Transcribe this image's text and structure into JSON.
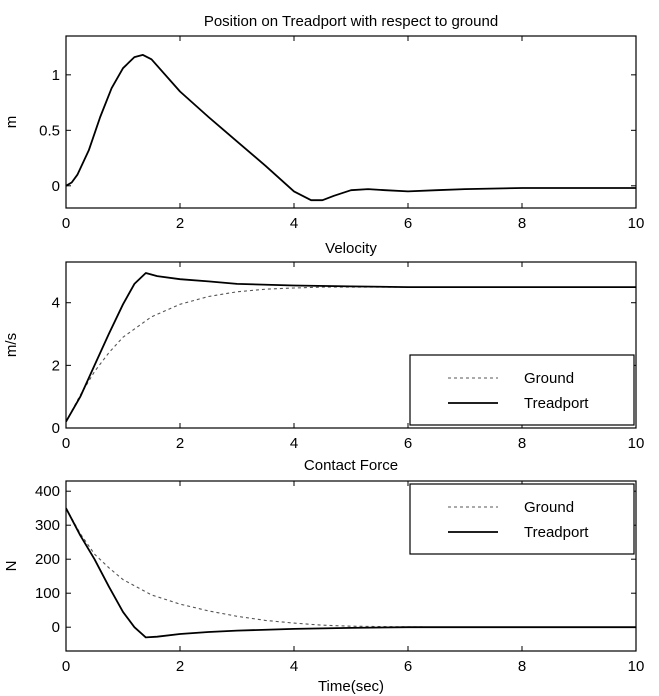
{
  "chart_data": [
    {
      "type": "line",
      "title": "Position on Treadport with respect to ground",
      "xlabel": "",
      "ylabel": "m",
      "xlim": [
        0,
        10
      ],
      "ylim": [
        -0.2,
        1.35
      ],
      "xticks": [
        "0",
        "2",
        "4",
        "6",
        "8",
        "10"
      ],
      "yticks": [
        "0",
        "0.5",
        "1"
      ],
      "ytick_values": [
        0,
        0.5,
        1
      ],
      "legend": null,
      "series": [
        {
          "style": "solid",
          "x": [
            0,
            0.1,
            0.2,
            0.4,
            0.6,
            0.8,
            1.0,
            1.2,
            1.35,
            1.5,
            2.0,
            2.5,
            3.0,
            3.5,
            4.0,
            4.3,
            4.5,
            4.7,
            5.0,
            5.3,
            5.6,
            6.0,
            6.5,
            7.0,
            8.0,
            9.0,
            10.0
          ],
          "y": [
            0,
            0.03,
            0.1,
            0.32,
            0.62,
            0.88,
            1.06,
            1.16,
            1.18,
            1.14,
            0.85,
            0.62,
            0.4,
            0.18,
            -0.05,
            -0.13,
            -0.13,
            -0.09,
            -0.04,
            -0.03,
            -0.04,
            -0.05,
            -0.04,
            -0.03,
            -0.02,
            -0.02,
            -0.02
          ]
        }
      ]
    },
    {
      "type": "line",
      "title": "Velocity",
      "xlabel": "",
      "ylabel": "m/s",
      "xlim": [
        0,
        10
      ],
      "ylim": [
        0,
        5.3
      ],
      "xticks": [
        "0",
        "2",
        "4",
        "6",
        "8",
        "10"
      ],
      "yticks": [
        "0",
        "2",
        "4"
      ],
      "ytick_values": [
        0,
        2,
        4
      ],
      "legend": {
        "position": "lower-right",
        "entries": [
          "Ground",
          "Treadport"
        ]
      },
      "series": [
        {
          "name": "Ground",
          "style": "dashed",
          "x": [
            0,
            0.25,
            0.5,
            0.75,
            1.0,
            1.5,
            2.0,
            2.5,
            3.0,
            3.5,
            4.0,
            4.5,
            5.0,
            5.5,
            6.0,
            7.0,
            8.0,
            9.0,
            10.0
          ],
          "y": [
            0.2,
            1.05,
            1.8,
            2.4,
            2.9,
            3.55,
            3.95,
            4.2,
            4.35,
            4.43,
            4.47,
            4.5,
            4.5,
            4.5,
            4.5,
            4.5,
            4.5,
            4.5,
            4.5
          ]
        },
        {
          "name": "Treadport",
          "style": "solid",
          "x": [
            0,
            0.25,
            0.5,
            0.75,
            1.0,
            1.2,
            1.4,
            1.6,
            2.0,
            2.5,
            3.0,
            4.0,
            5.0,
            6.0,
            7.0,
            8.0,
            9.0,
            10.0
          ],
          "y": [
            0.2,
            1.0,
            2.0,
            3.0,
            3.95,
            4.6,
            4.95,
            4.85,
            4.75,
            4.68,
            4.6,
            4.55,
            4.52,
            4.5,
            4.5,
            4.5,
            4.5,
            4.5
          ]
        }
      ]
    },
    {
      "type": "line",
      "title": "Contact Force",
      "xlabel": "Time(sec)",
      "ylabel": "N",
      "xlim": [
        0,
        10
      ],
      "ylim": [
        -70,
        430
      ],
      "xticks": [
        "0",
        "2",
        "4",
        "6",
        "8",
        "10"
      ],
      "yticks": [
        "0",
        "100",
        "200",
        "300",
        "400"
      ],
      "ytick_values": [
        0,
        100,
        200,
        300,
        400
      ],
      "legend": {
        "position": "top-right",
        "entries": [
          "Ground",
          "Treadport"
        ]
      },
      "series": [
        {
          "name": "Ground",
          "style": "dashed",
          "x": [
            0,
            0.25,
            0.5,
            0.75,
            1.0,
            1.5,
            2.0,
            2.5,
            3.0,
            3.5,
            4.0,
            4.5,
            5.0,
            6.0,
            7.0,
            8.0,
            9.0,
            10.0
          ],
          "y": [
            350,
            275,
            215,
            175,
            140,
            95,
            68,
            48,
            32,
            20,
            12,
            6,
            3,
            1,
            0,
            0,
            0,
            0
          ]
        },
        {
          "name": "Treadport",
          "style": "solid",
          "x": [
            0,
            0.25,
            0.5,
            0.75,
            1.0,
            1.2,
            1.4,
            1.6,
            2.0,
            2.5,
            3.0,
            4.0,
            5.0,
            6.0,
            7.0,
            8.0,
            9.0,
            10.0
          ],
          "y": [
            350,
            270,
            200,
            120,
            45,
            0,
            -30,
            -28,
            -20,
            -14,
            -10,
            -5,
            -2,
            0,
            0,
            0,
            0,
            0
          ]
        }
      ]
    }
  ]
}
